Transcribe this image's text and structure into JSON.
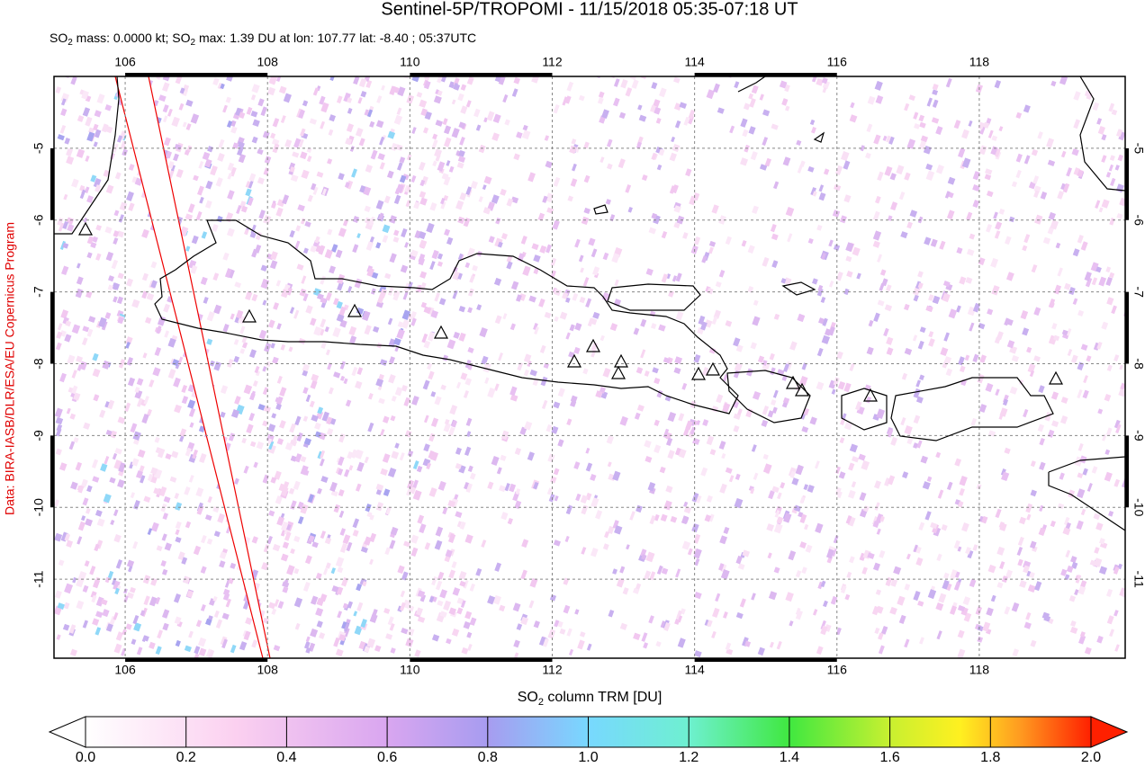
{
  "title": "Sentinel-5P/TROPOMI - 11/15/2018 05:35-07:18 UT",
  "subtitle": [
    "SO",
    "2",
    " mass: 0.0000 kt; SO",
    "2",
    " max: 1.39 DU at lon: 107.77 lat: -8.40 ; 05:37UTC"
  ],
  "credit": "Data: BIRA-IASB/DLR/ESA/EU Copernicus Program",
  "map": {
    "xlim": [
      105,
      120.05
    ],
    "ylim": [
      -12.1,
      -4
    ],
    "xticks": [
      106,
      108,
      110,
      112,
      114,
      116,
      118
    ],
    "yticks": [
      -5,
      -6,
      -7,
      -8,
      -9,
      -10,
      -11
    ]
  },
  "colorbar": {
    "label": [
      "SO",
      "2",
      " column TRM [DU]"
    ],
    "lim": [
      0,
      2
    ],
    "ticks": [
      {
        "value": 0,
        "label": "0.0"
      },
      {
        "value": 0.2,
        "label": "0.2"
      },
      {
        "value": 0.4,
        "label": "0.4"
      },
      {
        "value": 0.6,
        "label": "0.6"
      },
      {
        "value": 0.8,
        "label": "0.8"
      },
      {
        "value": 1,
        "label": "1.0"
      },
      {
        "value": 1.2,
        "label": "1.2"
      },
      {
        "value": 1.4,
        "label": "1.4"
      },
      {
        "value": 1.6,
        "label": "1.6"
      },
      {
        "value": 1.8,
        "label": "1.8"
      },
      {
        "value": 2,
        "label": "2.0"
      }
    ]
  }
}
